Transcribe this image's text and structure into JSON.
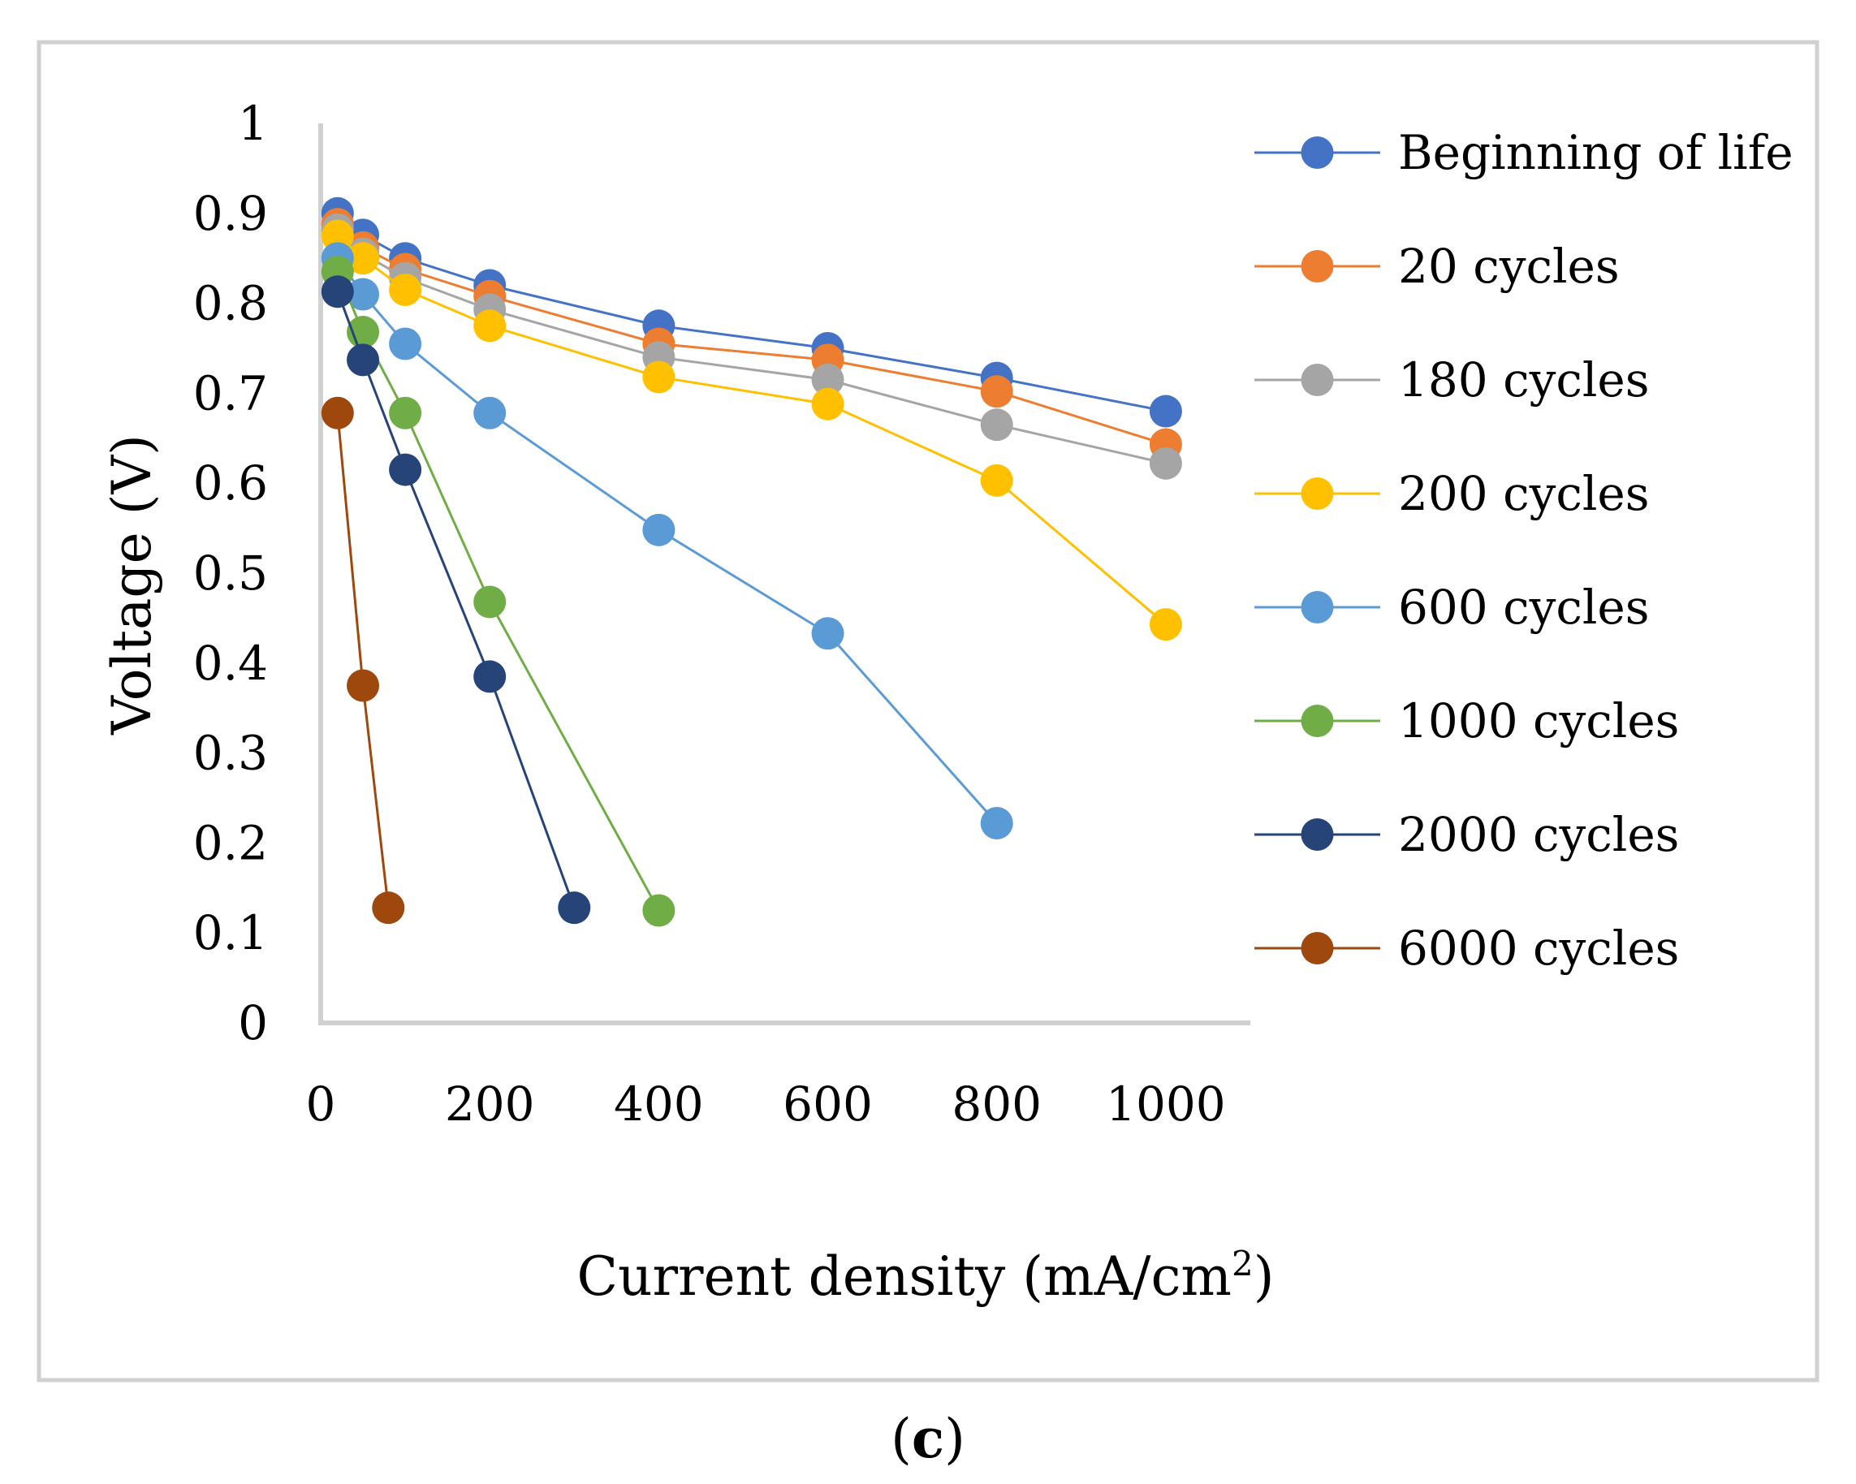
{
  "chart_data": {
    "type": "line",
    "xlabel": "Current density (mA/cm",
    "xlabel_sup": "2",
    "xlabel_end": ")",
    "ylabel": "Voltage (V)",
    "xlim": [
      0,
      1100
    ],
    "ylim": [
      0,
      1
    ],
    "x_ticks": [
      0,
      200,
      400,
      600,
      800,
      1000
    ],
    "x_tick_labels": [
      "0",
      "200",
      "400",
      "600",
      "800",
      "1000"
    ],
    "y_ticks": [
      0,
      0.1,
      0.2,
      0.3,
      0.4,
      0.5,
      0.6,
      0.7,
      0.8,
      0.9,
      1
    ],
    "y_tick_labels": [
      "0",
      "0.1",
      "0.2",
      "0.3",
      "0.4",
      "0.5",
      "0.6",
      "0.7",
      "0.8",
      "0.9",
      "1"
    ],
    "legend_position": "right",
    "caption_open": "(",
    "caption_letter": "c",
    "caption_close": ")",
    "series": [
      {
        "name": "Beginning of life",
        "color": "#4472C4",
        "x": [
          20,
          50,
          100,
          200,
          400,
          600,
          800,
          1000
        ],
        "y": [
          0.9,
          0.876,
          0.85,
          0.82,
          0.775,
          0.75,
          0.717,
          0.68
        ]
      },
      {
        "name": "20 cycles",
        "color": "#ED7D31",
        "x": [
          20,
          50,
          100,
          200,
          400,
          600,
          800,
          1000
        ],
        "y": [
          0.888,
          0.862,
          0.838,
          0.808,
          0.755,
          0.737,
          0.702,
          0.643
        ]
      },
      {
        "name": "180 cycles",
        "color": "#A5A5A5",
        "x": [
          20,
          50,
          100,
          200,
          400,
          600,
          800,
          1000
        ],
        "y": [
          0.882,
          0.855,
          0.828,
          0.793,
          0.74,
          0.715,
          0.665,
          0.622
        ]
      },
      {
        "name": "200 cycles",
        "color": "#FFC000",
        "x": [
          20,
          50,
          100,
          200,
          400,
          600,
          800,
          1000
        ],
        "y": [
          0.875,
          0.85,
          0.815,
          0.775,
          0.718,
          0.688,
          0.603,
          0.443
        ]
      },
      {
        "name": "600 cycles",
        "color": "#5B9BD5",
        "x": [
          20,
          50,
          100,
          200,
          400,
          600,
          800
        ],
        "y": [
          0.85,
          0.81,
          0.755,
          0.678,
          0.548,
          0.433,
          0.222
        ]
      },
      {
        "name": "1000 cycles",
        "color": "#70AD47",
        "x": [
          20,
          50,
          100,
          200,
          400
        ],
        "y": [
          0.835,
          0.768,
          0.678,
          0.468,
          0.125
        ]
      },
      {
        "name": "2000 cycles",
        "color": "#264478",
        "x": [
          20,
          50,
          100,
          200,
          300
        ],
        "y": [
          0.813,
          0.737,
          0.615,
          0.385,
          0.128
        ]
      },
      {
        "name": "6000 cycles",
        "color": "#9E480E",
        "x": [
          20,
          50,
          80
        ],
        "y": [
          0.678,
          0.375,
          0.128
        ]
      }
    ]
  }
}
